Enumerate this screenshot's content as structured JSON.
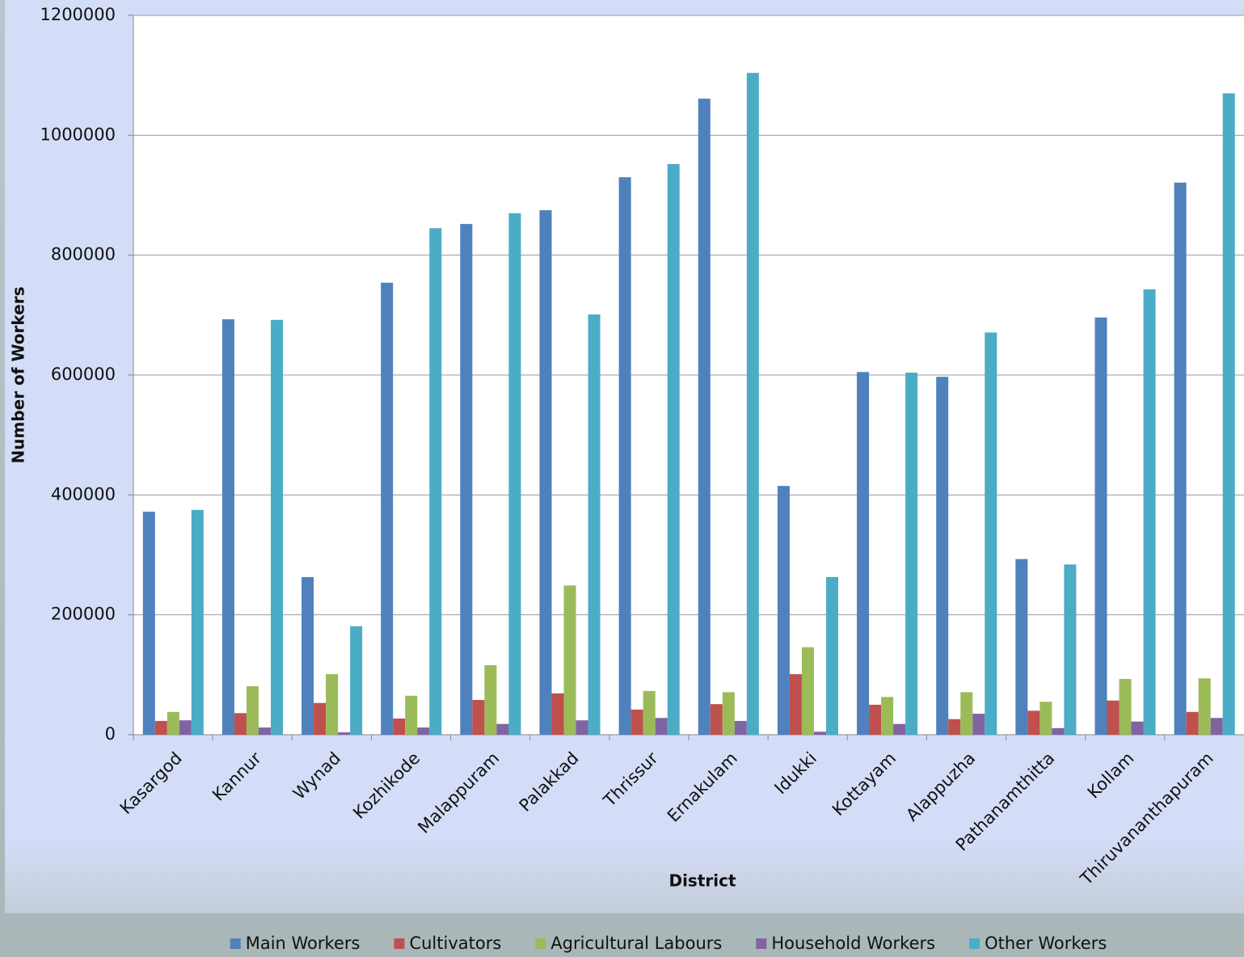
{
  "chart_data": {
    "type": "bar",
    "x_label": "District",
    "y_label": "Number of Workers",
    "categories": [
      "Kasargod",
      "Kannur",
      "Wynad",
      "Kozhikode",
      "Malappuram",
      "Palakkad",
      "Thrissur",
      "Ernakulam",
      "Idukki",
      "Kottayam",
      "Alappuzha",
      "Pathanamthitta",
      "Kollam",
      "Thiruvananthapuram"
    ],
    "series": [
      {
        "name": "Main Workers",
        "color": "#4f81bd",
        "values": [
          372000,
          693000,
          263000,
          754000,
          852000,
          875000,
          930000,
          1061000,
          415000,
          605000,
          597000,
          293000,
          696000,
          921000
        ]
      },
      {
        "name": "Cultivators",
        "color": "#c0504d",
        "values": [
          23000,
          36000,
          53000,
          27000,
          58000,
          69000,
          42000,
          51000,
          101000,
          50000,
          26000,
          40000,
          57000,
          38000
        ]
      },
      {
        "name": "Agricultural Labours",
        "color": "#9bbb59",
        "values": [
          38000,
          81000,
          101000,
          65000,
          116000,
          249000,
          73000,
          71000,
          146000,
          63000,
          71000,
          55000,
          93000,
          94000
        ]
      },
      {
        "name": "Household Workers",
        "color": "#8064a2",
        "values": [
          24000,
          12000,
          4000,
          12000,
          18000,
          24000,
          28000,
          23000,
          5000,
          18000,
          35000,
          11000,
          22000,
          28000
        ]
      },
      {
        "name": "Other Workers",
        "color": "#4bacc6",
        "values": [
          375000,
          692000,
          181000,
          845000,
          870000,
          701000,
          952000,
          1104000,
          263000,
          604000,
          671000,
          284000,
          743000,
          1070000
        ]
      }
    ],
    "ylim": [
      0,
      1200000
    ],
    "yticks": [
      0,
      200000,
      400000,
      600000,
      800000,
      1000000,
      1200000
    ],
    "grid": true,
    "legend": "bottom"
  }
}
